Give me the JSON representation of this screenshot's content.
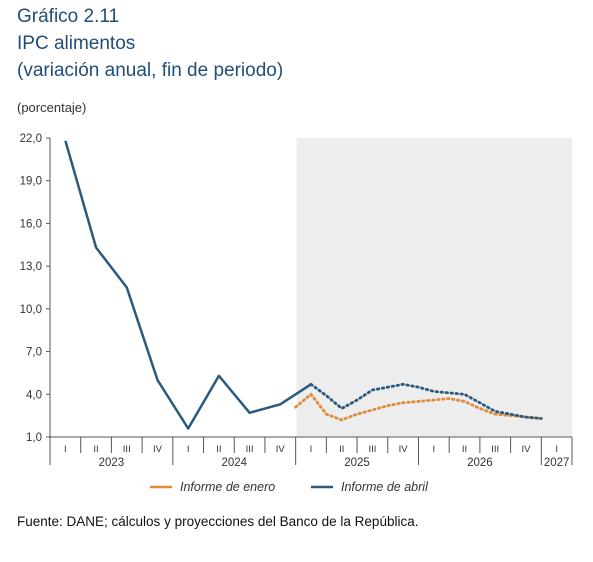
{
  "header": {
    "title_line1": "Gráfico 2.11",
    "title_line2": "IPC alimentos",
    "title_line3": "(variación anual, fin de periodo)",
    "unit": "(porcentaje)"
  },
  "source": "Fuente: DANE; cálculos y proyecciones del Banco de la República.",
  "colors": {
    "abril": "#2b5a7e",
    "enero": "#e08a3a",
    "forecast_shade": "#ededed",
    "axis": "#555555"
  },
  "chart_data": {
    "type": "line",
    "title": "IPC alimentos",
    "ylabel": "(porcentaje)",
    "ylim": [
      1.0,
      22.0
    ],
    "yticks": [
      "1,0",
      "4,0",
      "7,0",
      "10,0",
      "13,0",
      "16,0",
      "19,0",
      "22,0"
    ],
    "ytick_values": [
      1,
      4,
      7,
      10,
      13,
      16,
      19,
      22
    ],
    "x_quarter_labels": [
      "I",
      "II",
      "III",
      "IV",
      "I",
      "II",
      "III",
      "IV",
      "I",
      "II",
      "III",
      "IV",
      "I",
      "II",
      "III",
      "IV",
      "I"
    ],
    "x_year_labels": [
      "2023",
      "2024",
      "2025",
      "2026",
      "2027"
    ],
    "year_start_index": [
      0,
      4,
      8,
      12,
      16
    ],
    "grid": false,
    "legend_position": "bottom",
    "forecast_start_index": 8.5,
    "series": [
      {
        "name": "Informe de enero",
        "color": "#e08a3a",
        "style": "dotted",
        "points": [
          [
            7.5,
            3.1
          ],
          [
            8.0,
            4.0
          ],
          [
            8.5,
            2.6
          ],
          [
            9.0,
            2.2
          ],
          [
            9.5,
            2.6
          ],
          [
            10.0,
            2.9
          ],
          [
            10.5,
            3.2
          ],
          [
            11.0,
            3.4
          ],
          [
            11.5,
            3.5
          ],
          [
            12.0,
            3.6
          ],
          [
            12.5,
            3.7
          ],
          [
            13.0,
            3.5
          ],
          [
            13.5,
            3.0
          ],
          [
            14.0,
            2.6
          ],
          [
            14.5,
            2.5
          ],
          [
            15.0,
            2.4
          ],
          [
            15.5,
            2.3
          ]
        ]
      },
      {
        "name": "Informe de abril",
        "color": "#2b5a7e",
        "style": "solid",
        "points": [
          [
            0.0,
            21.8
          ],
          [
            1.0,
            14.3
          ],
          [
            2.0,
            11.5
          ],
          [
            3.0,
            5.0
          ],
          [
            4.0,
            1.6
          ],
          [
            5.0,
            5.3
          ],
          [
            6.0,
            2.7
          ],
          [
            7.0,
            3.3
          ],
          [
            8.0,
            4.7
          ]
        ]
      },
      {
        "name": "Informe de abril (proyección)",
        "color": "#2b5a7e",
        "style": "dotted",
        "points": [
          [
            8.0,
            4.7
          ],
          [
            8.5,
            3.9
          ],
          [
            9.0,
            3.0
          ],
          [
            9.5,
            3.6
          ],
          [
            10.0,
            4.3
          ],
          [
            10.5,
            4.5
          ],
          [
            11.0,
            4.7
          ],
          [
            11.5,
            4.5
          ],
          [
            12.0,
            4.2
          ],
          [
            12.5,
            4.1
          ],
          [
            13.0,
            4.0
          ],
          [
            13.5,
            3.4
          ],
          [
            14.0,
            2.8
          ],
          [
            14.5,
            2.6
          ],
          [
            15.0,
            2.4
          ],
          [
            15.5,
            2.3
          ]
        ]
      }
    ]
  },
  "legend": {
    "enero": "Informe de enero",
    "abril": "Informe de abril"
  }
}
